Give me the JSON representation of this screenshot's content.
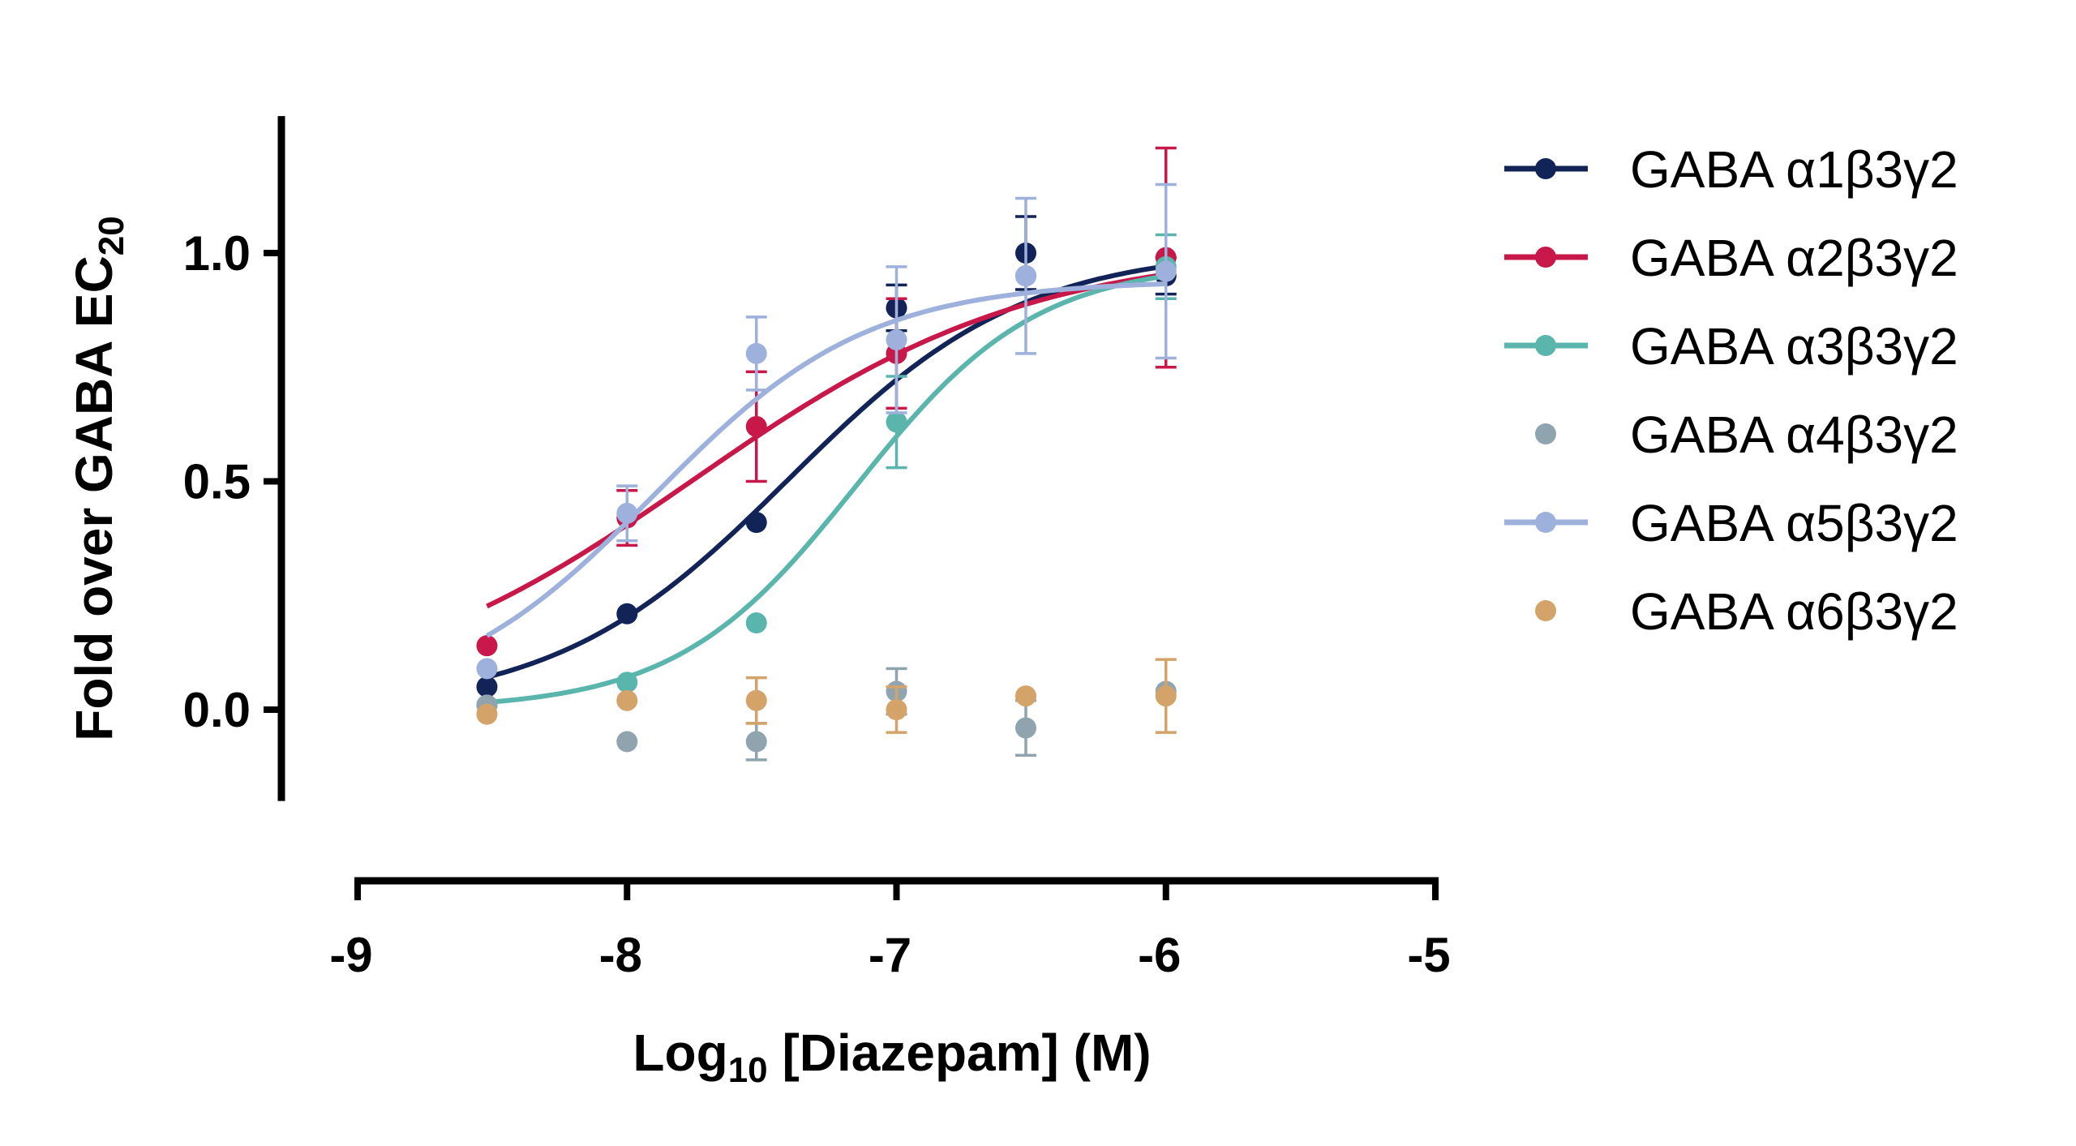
{
  "chart_data": {
    "type": "scatter",
    "title": "",
    "xlabel": {
      "main": "Log",
      "sub": "10",
      "rest": " [Diazepam] (M)"
    },
    "ylabel": {
      "main": "Fold over GABA EC",
      "sub": "20"
    },
    "xlim": [
      -9,
      -5
    ],
    "ylim": [
      -0.2,
      1.3
    ],
    "x_ticks": [
      "-9",
      "-8",
      "-7",
      "-6",
      "-5"
    ],
    "y_ticks": [
      "0.0",
      "0.5",
      "1.0"
    ],
    "grid": false,
    "legend_position": "right",
    "x": [
      -8.52,
      -8.0,
      -7.52,
      -7.0,
      -6.52,
      -6.0
    ],
    "series": [
      {
        "name": "GABA α1β3γ2",
        "color": "#122357",
        "fit": true,
        "values": [
          0.05,
          0.21,
          0.41,
          0.88,
          1.0,
          0.95
        ],
        "err": [
          0.02,
          0.02,
          0.02,
          0.05,
          0.08,
          0.04
        ],
        "fit_params": {
          "bottom": 0.0,
          "top": 1.01,
          "logec50": -7.4,
          "hill": 1.0
        }
      },
      {
        "name": "GABA α2β3γ2",
        "color": "#C8184A",
        "fit": true,
        "values": [
          0.14,
          0.42,
          0.62,
          0.78,
          0.95,
          0.99
        ],
        "err": [
          0.03,
          0.06,
          0.12,
          0.12,
          0.03,
          0.24
        ],
        "fit_params": {
          "bottom": 0.0,
          "top": 1.01,
          "logec50": -7.75,
          "hill": 0.7
        }
      },
      {
        "name": "GABA α3β3γ2",
        "color": "#5AB5AD",
        "fit": true,
        "values": [
          0.01,
          0.06,
          0.19,
          0.63,
          0.95,
          0.97
        ],
        "err": [
          0.02,
          0.02,
          0.02,
          0.1,
          0.03,
          0.07
        ],
        "fit_params": {
          "bottom": 0.0,
          "top": 0.98,
          "logec50": -7.15,
          "hill": 1.3
        }
      },
      {
        "name": "GABA α4β3γ2",
        "color": "#8FA4AE",
        "fit": false,
        "values": [
          0.01,
          -0.07,
          -0.07,
          0.04,
          -0.04,
          0.04
        ],
        "err": [
          0.02,
          0.02,
          0.04,
          0.05,
          0.06,
          0.02
        ]
      },
      {
        "name": "GABA α5β3γ2",
        "color": "#9DB1DC",
        "fit": true,
        "values": [
          0.09,
          0.43,
          0.78,
          0.81,
          0.95,
          0.96
        ],
        "err": [
          0.02,
          0.06,
          0.08,
          0.16,
          0.17,
          0.19
        ],
        "fit_params": {
          "bottom": 0.0,
          "top": 0.94,
          "logec50": -7.9,
          "hill": 1.1
        }
      },
      {
        "name": "GABA α6β3γ2",
        "color": "#D3A36A",
        "fit": false,
        "values": [
          -0.01,
          0.02,
          0.02,
          0.0,
          0.03,
          0.03
        ],
        "err": [
          0.02,
          0.02,
          0.05,
          0.05,
          0.02,
          0.08
        ]
      }
    ]
  }
}
